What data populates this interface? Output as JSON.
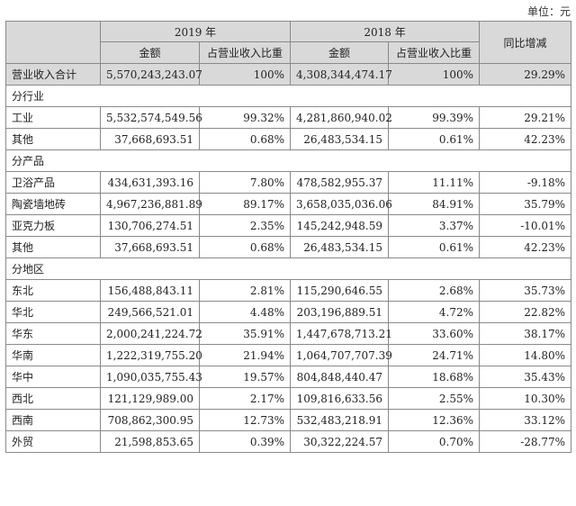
{
  "unit": "单位：元",
  "header": {
    "year_2019": "2019 年",
    "year_2018": "2018 年",
    "yoy": "同比增减",
    "amount": "金额",
    "ratio": "占营业收入比重"
  },
  "total": {
    "label": "营业收入合计",
    "amt2019": "5,570,243,243.07",
    "pct2019": "100%",
    "amt2018": "4,308,344,474.17",
    "pct2018": "100%",
    "yoy": "29.29%"
  },
  "sections": [
    {
      "title": "分行业",
      "rows": [
        {
          "label": "工业",
          "amt2019": "5,532,574,549.56",
          "pct2019": "99.32%",
          "amt2018": "4,281,860,940.02",
          "pct2018": "99.39%",
          "yoy": "29.21%"
        },
        {
          "label": "其他",
          "amt2019": "37,668,693.51",
          "pct2019": "0.68%",
          "amt2018": "26,483,534.15",
          "pct2018": "0.61%",
          "yoy": "42.23%"
        }
      ]
    },
    {
      "title": "分产品",
      "rows": [
        {
          "label": "卫浴产品",
          "amt2019": "434,631,393.16",
          "pct2019": "7.80%",
          "amt2018": "478,582,955.37",
          "pct2018": "11.11%",
          "yoy": "-9.18%"
        },
        {
          "label": "陶瓷墙地砖",
          "amt2019": "4,967,236,881.89",
          "pct2019": "89.17%",
          "amt2018": "3,658,035,036.06",
          "pct2018": "84.91%",
          "yoy": "35.79%"
        },
        {
          "label": "亚克力板",
          "amt2019": "130,706,274.51",
          "pct2019": "2.35%",
          "amt2018": "145,242,948.59",
          "pct2018": "3.37%",
          "yoy": "-10.01%"
        },
        {
          "label": "其他",
          "amt2019": "37,668,693.51",
          "pct2019": "0.68%",
          "amt2018": "26,483,534.15",
          "pct2018": "0.61%",
          "yoy": "42.23%"
        }
      ]
    },
    {
      "title": "分地区",
      "rows": [
        {
          "label": "东北",
          "amt2019": "156,488,843.11",
          "pct2019": "2.81%",
          "amt2018": "115,290,646.55",
          "pct2018": "2.68%",
          "yoy": "35.73%"
        },
        {
          "label": "华北",
          "amt2019": "249,566,521.01",
          "pct2019": "4.48%",
          "amt2018": "203,196,889.51",
          "pct2018": "4.72%",
          "yoy": "22.82%"
        },
        {
          "label": "华东",
          "amt2019": "2,000,241,224.72",
          "pct2019": "35.91%",
          "amt2018": "1,447,678,713.21",
          "pct2018": "33.60%",
          "yoy": "38.17%"
        },
        {
          "label": "华南",
          "amt2019": "1,222,319,755.20",
          "pct2019": "21.94%",
          "amt2018": "1,064,707,707.39",
          "pct2018": "24.71%",
          "yoy": "14.80%"
        },
        {
          "label": "华中",
          "amt2019": "1,090,035,755.43",
          "pct2019": "19.57%",
          "amt2018": "804,848,440.47",
          "pct2018": "18.68%",
          "yoy": "35.43%"
        },
        {
          "label": "西北",
          "amt2019": "121,129,989.00",
          "pct2019": "2.17%",
          "amt2018": "109,816,633.56",
          "pct2018": "2.55%",
          "yoy": "10.30%"
        },
        {
          "label": "西南",
          "amt2019": "708,862,300.95",
          "pct2019": "12.73%",
          "amt2018": "532,483,218.91",
          "pct2018": "12.36%",
          "yoy": "33.12%"
        },
        {
          "label": "外贸",
          "amt2019": "21,598,853.65",
          "pct2019": "0.39%",
          "amt2018": "30,322,224.57",
          "pct2018": "0.70%",
          "yoy": "-28.77%"
        }
      ]
    }
  ]
}
